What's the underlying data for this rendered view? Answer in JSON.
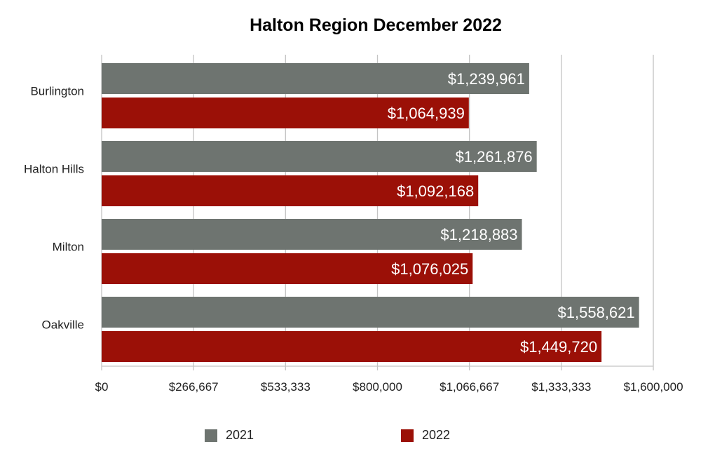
{
  "chart_data": {
    "type": "bar",
    "orientation": "horizontal",
    "title": "Halton Region December 2022",
    "categories": [
      "Burlington",
      "Halton Hills",
      "Milton",
      "Oakville"
    ],
    "series": [
      {
        "name": "2021",
        "color": "#6e7470",
        "values": [
          1239961,
          1261876,
          1218883,
          1558621
        ],
        "labels": [
          "$1,239,961",
          "$1,261,876",
          "$1,218,883",
          "$1,558,621"
        ]
      },
      {
        "name": "2022",
        "color": "#9b1007",
        "values": [
          1064939,
          1092168,
          1076025,
          1449720
        ],
        "labels": [
          "$1,064,939",
          "$1,092,168",
          "$1,076,025",
          "$1,449,720"
        ]
      }
    ],
    "xlim": [
      0,
      1600000
    ],
    "x_ticks": [
      0,
      266667,
      533333,
      800000,
      1066667,
      1333333,
      1600000
    ],
    "x_tick_labels": [
      "$0",
      "$266,667",
      "$533,333",
      "$800,000",
      "$1,066,667",
      "$1,333,333",
      "$1,600,000"
    ],
    "grid": true,
    "legend_position": "bottom"
  }
}
